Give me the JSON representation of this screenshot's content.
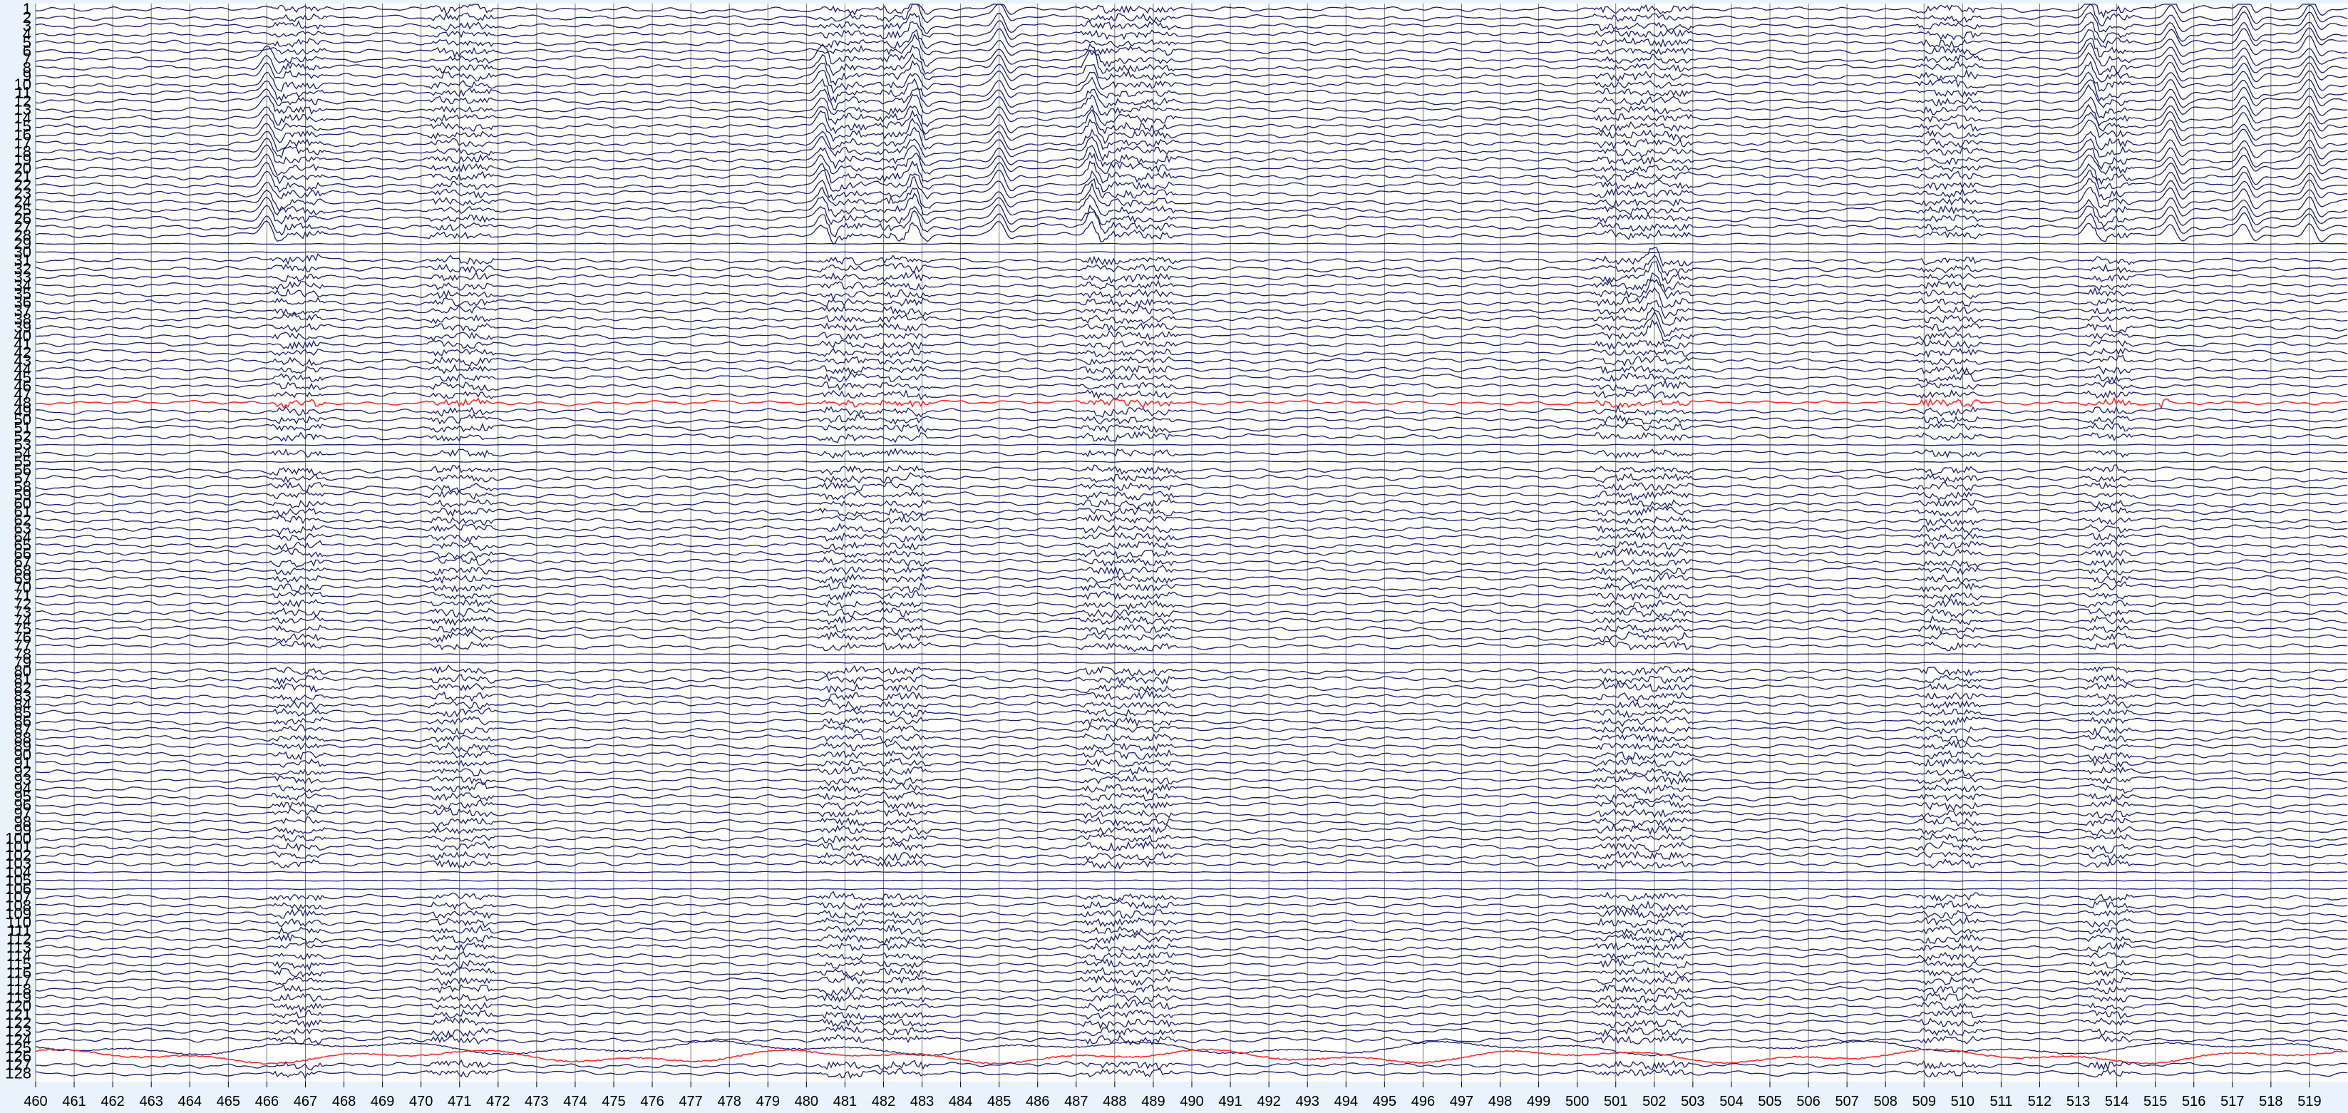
{
  "chart_data": {
    "type": "line",
    "xlabel": "",
    "ylabel": "",
    "xlim": [
      460,
      520
    ],
    "x_ticks": [
      460,
      461,
      462,
      463,
      464,
      465,
      466,
      467,
      468,
      469,
      470,
      471,
      472,
      473,
      474,
      475,
      476,
      477,
      478,
      479,
      480,
      481,
      482,
      483,
      484,
      485,
      486,
      487,
      488,
      489,
      490,
      491,
      492,
      493,
      494,
      495,
      496,
      497,
      498,
      499,
      500,
      501,
      502,
      503,
      504,
      505,
      506,
      507,
      508,
      509,
      510,
      511,
      512,
      513,
      514,
      515,
      516,
      517,
      518,
      519
    ],
    "channel_count": 128,
    "channel_labels": [
      "1",
      "2",
      "3",
      "4",
      "5",
      "6",
      "7",
      "8",
      "9",
      "10",
      "11",
      "12",
      "13",
      "14",
      "15",
      "16",
      "17",
      "18",
      "19",
      "20",
      "21",
      "22",
      "23",
      "24",
      "25",
      "26",
      "27",
      "28",
      "29",
      "30",
      "31",
      "32",
      "33",
      "34",
      "35",
      "36",
      "37",
      "38",
      "39",
      "40",
      "41",
      "42",
      "43",
      "44",
      "45",
      "46",
      "47",
      "48",
      "49",
      "50",
      "51",
      "52",
      "53",
      "54",
      "55",
      "56",
      "57",
      "58",
      "59",
      "60",
      "61",
      "62",
      "63",
      "64",
      "65",
      "66",
      "67",
      "68",
      "69",
      "70",
      "71",
      "72",
      "73",
      "74",
      "75",
      "76",
      "77",
      "78",
      "79",
      "80",
      "81",
      "82",
      "83",
      "84",
      "85",
      "86",
      "87",
      "88",
      "89",
      "90",
      "91",
      "92",
      "93",
      "94",
      "95",
      "96",
      "97",
      "98",
      "99",
      "100",
      "101",
      "102",
      "103",
      "104",
      "105",
      "106",
      "107",
      "108",
      "109",
      "110",
      "111",
      "112",
      "113",
      "114",
      "115",
      "116",
      "117",
      "118",
      "119",
      "120",
      "121",
      "122",
      "123",
      "124",
      "125",
      "126",
      "127",
      "128"
    ],
    "highlighted_channels": [
      48,
      126
    ],
    "flat_channels": [
      29,
      30,
      53,
      55,
      78,
      79,
      104,
      105,
      106
    ],
    "artifact_bursts": [
      {
        "x_start": 466.3,
        "x_end": 467.3
      },
      {
        "x_start": 470.4,
        "x_end": 471.7
      },
      {
        "x_start": 480.5,
        "x_end": 481.4
      },
      {
        "x_start": 482.0,
        "x_end": 483.0
      },
      {
        "x_start": 487.3,
        "x_end": 489.4
      },
      {
        "x_start": 500.6,
        "x_end": 502.8
      },
      {
        "x_start": 509.0,
        "x_end": 510.3
      },
      {
        "x_start": 513.4,
        "x_end": 514.2
      }
    ],
    "slow_deflections": [
      {
        "x": 466.0,
        "channels": [
          7,
          28
        ]
      },
      {
        "x": 480.4,
        "channels": [
          7,
          28
        ]
      },
      {
        "x": 482.8,
        "channels": [
          1,
          28
        ]
      },
      {
        "x": 485.0,
        "channels": [
          1,
          28
        ]
      },
      {
        "x": 487.4,
        "channels": [
          7,
          28
        ]
      },
      {
        "x": 502.0,
        "channels": [
          31,
          40
        ]
      },
      {
        "x": 513.3,
        "channels": [
          1,
          28
        ]
      },
      {
        "x": 515.4,
        "channels": [
          1,
          28
        ]
      },
      {
        "x": 517.3,
        "channels": [
          1,
          28
        ]
      },
      {
        "x": 519.0,
        "channels": [
          1,
          28
        ]
      }
    ],
    "colors": {
      "trace": "#1c1c6e",
      "highlight": "#ff2a2a",
      "gridline": "#000000",
      "background": "#ffffff",
      "frame": "#eaf2fb"
    },
    "grid": true
  }
}
